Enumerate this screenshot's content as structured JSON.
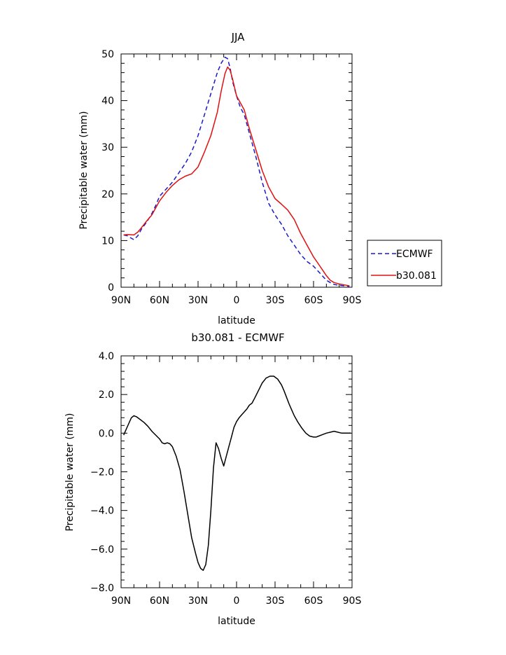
{
  "chart_data": [
    {
      "type": "line",
      "title": "JJA",
      "xlabel": "latitude",
      "ylabel": "Precipitable water (mm)",
      "xlim": [
        90,
        -90
      ],
      "ylim": [
        0,
        50
      ],
      "xticks": [
        90,
        60,
        30,
        0,
        -30,
        -60,
        -90
      ],
      "xtick_labels": [
        "90N",
        "60N",
        "30N",
        "0",
        "30S",
        "60S",
        "90S"
      ],
      "yticks": [
        0,
        10,
        20,
        30,
        40,
        50
      ],
      "ytick_labels": [
        "0",
        "10",
        "20",
        "30",
        "40",
        "50"
      ],
      "legend_position": "right",
      "series": [
        {
          "name": "ECMWF",
          "color": "#1a1ac8",
          "dash": "dashed",
          "x": [
            88,
            85,
            82,
            80,
            77,
            74,
            70,
            66,
            63,
            60,
            55,
            50,
            45,
            40,
            35,
            30,
            25,
            20,
            15,
            12,
            9,
            7,
            5,
            3,
            0,
            -3,
            -6,
            -10,
            -15,
            -20,
            -25,
            -30,
            -35,
            -40,
            -45,
            -50,
            -55,
            -60,
            -65,
            -70,
            -73,
            -76,
            -80,
            -84,
            -88
          ],
          "y": [
            11.2,
            11.0,
            10.5,
            10.2,
            11.0,
            12.5,
            14.0,
            15.8,
            17.5,
            19.5,
            21.0,
            22.5,
            24.5,
            26.5,
            29.0,
            32.5,
            37.0,
            41.5,
            46.0,
            48.0,
            49.3,
            49.0,
            47.0,
            44.0,
            41.0,
            38.5,
            37.0,
            33.0,
            28.0,
            22.5,
            18.0,
            15.5,
            13.5,
            11.0,
            9.0,
            7.0,
            5.5,
            4.5,
            3.0,
            1.5,
            1.0,
            0.6,
            0.4,
            0.3,
            0.2
          ]
        },
        {
          "name": "b30.081",
          "color": "#e01010",
          "dash": "solid",
          "x": [
            88,
            85,
            80,
            77,
            74,
            70,
            66,
            63,
            60,
            55,
            50,
            45,
            40,
            35,
            30,
            25,
            20,
            15,
            12,
            9,
            7,
            5,
            3,
            0,
            -3,
            -6,
            -10,
            -15,
            -20,
            -25,
            -30,
            -35,
            -40,
            -45,
            -50,
            -55,
            -60,
            -65,
            -70,
            -73,
            -76,
            -80,
            -84,
            -88
          ],
          "y": [
            11.2,
            11.3,
            11.2,
            11.8,
            12.8,
            14.2,
            15.5,
            17.0,
            18.5,
            20.3,
            21.8,
            23.0,
            23.8,
            24.3,
            25.8,
            29.0,
            32.5,
            37.5,
            42.0,
            45.8,
            47.2,
            46.5,
            44.5,
            41.0,
            39.5,
            38.0,
            34.0,
            29.5,
            25.0,
            21.5,
            19.0,
            17.8,
            16.5,
            14.5,
            11.5,
            9.0,
            6.5,
            4.5,
            2.5,
            1.5,
            1.0,
            0.7,
            0.5,
            0.3
          ]
        }
      ]
    },
    {
      "type": "line",
      "title": "b30.081 - ECMWF",
      "xlabel": "latitude",
      "ylabel": "Precipitable water (mm)",
      "xlim": [
        90,
        -90
      ],
      "ylim": [
        -8,
        4
      ],
      "xticks": [
        90,
        60,
        30,
        0,
        -30,
        -60,
        -90
      ],
      "xtick_labels": [
        "90N",
        "60N",
        "30N",
        "0",
        "30S",
        "60S",
        "90S"
      ],
      "yticks": [
        -8,
        -6,
        -4,
        -2,
        0,
        2,
        4
      ],
      "ytick_labels": [
        "-8.0",
        "-6.0",
        "-4.0",
        "-2.0",
        "0.0",
        "2.0",
        "4.0"
      ],
      "series": [
        {
          "color": "#000000",
          "dash": "solid",
          "x": [
            88,
            86,
            84,
            82,
            80,
            78,
            75,
            72,
            69,
            66,
            63,
            60,
            58,
            56,
            54,
            52,
            50,
            47,
            44,
            41,
            38,
            35,
            32,
            30,
            28,
            26,
            24,
            22,
            20,
            18,
            16,
            14,
            12,
            10,
            8,
            6,
            4,
            2,
            0,
            -2,
            -4,
            -6,
            -8,
            -10,
            -12,
            -14,
            -17,
            -20,
            -23,
            -26,
            -29,
            -32,
            -35,
            -37,
            -39,
            -41,
            -43,
            -45,
            -48,
            -51,
            -54,
            -57,
            -60,
            -62,
            -64,
            -66,
            -68,
            -70,
            -73,
            -76,
            -79,
            -82,
            -85,
            -87,
            -89
          ],
          "y": [
            -0.1,
            0.2,
            0.5,
            0.8,
            0.9,
            0.85,
            0.7,
            0.55,
            0.35,
            0.1,
            -0.1,
            -0.3,
            -0.5,
            -0.55,
            -0.5,
            -0.55,
            -0.7,
            -1.2,
            -1.9,
            -3.0,
            -4.2,
            -5.4,
            -6.2,
            -6.7,
            -7.0,
            -7.1,
            -6.8,
            -5.8,
            -4.0,
            -1.8,
            -0.5,
            -0.8,
            -1.3,
            -1.7,
            -1.2,
            -0.7,
            -0.2,
            0.3,
            0.6,
            0.8,
            0.95,
            1.1,
            1.25,
            1.45,
            1.55,
            1.8,
            2.2,
            2.6,
            2.85,
            2.95,
            2.95,
            2.8,
            2.5,
            2.2,
            1.85,
            1.5,
            1.2,
            0.9,
            0.55,
            0.25,
            0.0,
            -0.15,
            -0.2,
            -0.2,
            -0.15,
            -0.1,
            -0.05,
            0.0,
            0.05,
            0.1,
            0.05,
            0.0,
            0.0,
            0.0,
            0.0
          ]
        }
      ]
    }
  ]
}
